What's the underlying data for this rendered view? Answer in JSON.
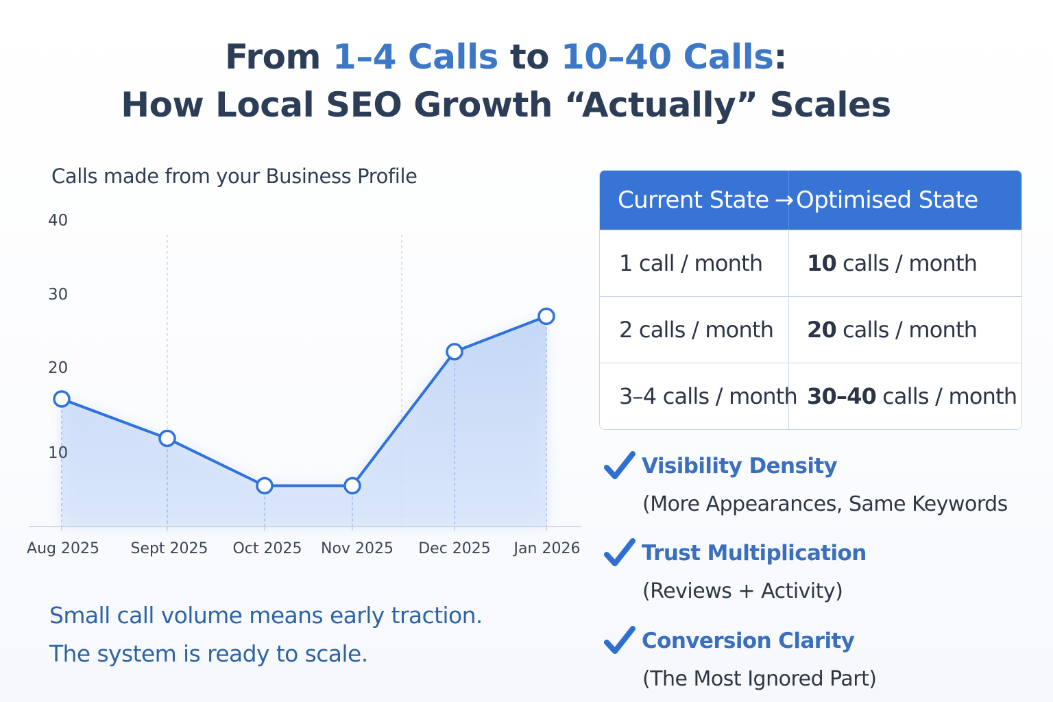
{
  "title": {
    "line1_a": "From ",
    "line1_hl1": "1–4 Calls",
    "line1_b": " to ",
    "line1_hl2": "10–40 Calls",
    "line1_c": ":",
    "line2": "How Local SEO Growth “Actually” Scales"
  },
  "chart_data": {
    "type": "area",
    "title": "Calls made from your Business Profile",
    "categories": [
      "Aug 2025",
      "Sept 2025",
      "Oct 2025",
      "Nov 2025",
      "Dec 2025",
      "Jan 2026"
    ],
    "values": [
      16,
      11,
      5,
      5,
      22,
      27
    ],
    "yticks": [
      10,
      20,
      30,
      40
    ],
    "ylim": [
      0,
      40
    ],
    "xlabel": "",
    "ylabel": "",
    "grid": "vertical dashed",
    "colors": {
      "line": "#2f72dc",
      "fill": "#c5d8f7"
    }
  },
  "caption": {
    "line1": "Small call volume means early traction.",
    "line2": "The system is ready to scale."
  },
  "table": {
    "header_left": "Current State",
    "header_arrow": "→",
    "header_right": "Optimised State",
    "rows": [
      {
        "current": "1 call / month",
        "optimised_num": "10",
        "optimised_unit": "calls / month"
      },
      {
        "current": "2 calls / month",
        "optimised_num": "20",
        "optimised_unit": "calls / month"
      },
      {
        "current": "3–4 calls / month",
        "optimised_num": "30–40",
        "optimised_unit": "calls / month"
      }
    ],
    "colors": {
      "header_bg": "#3873d6"
    }
  },
  "benefits": [
    {
      "label": "Visibility Density",
      "sub": "(More Appearances, Same Keywords",
      "icon": "check-icon"
    },
    {
      "label": "Trust Multiplication",
      "sub": "(Reviews + Activity)",
      "icon": "check-icon"
    },
    {
      "label": "Conversion Clarity",
      "sub": "(The Most Ignored Part)",
      "icon": "check-icon"
    }
  ]
}
